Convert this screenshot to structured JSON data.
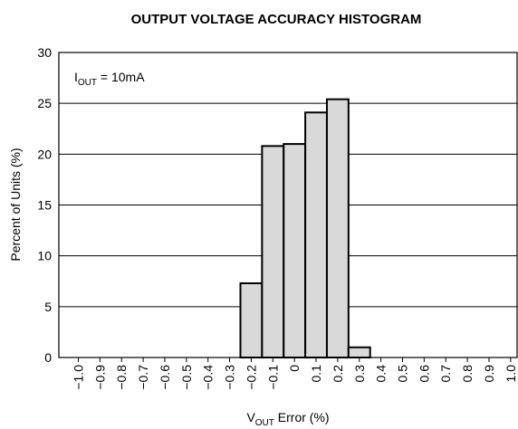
{
  "chart_data": {
    "type": "histogram",
    "title": "OUTPUT VOLTAGE ACCURACY HISTOGRAM",
    "annotation": {
      "main": "I",
      "sub": "OUT",
      "rest": " = 10mA"
    },
    "xlabel": {
      "main": "V",
      "sub": "OUT",
      "rest": " Error (%)"
    },
    "ylabel": "Percent of Units (%)",
    "bins": [
      -0.25,
      -0.15,
      -0.05,
      0.05,
      0.15,
      0.25,
      0.35
    ],
    "counts": [
      7.3,
      20.8,
      21.0,
      24.1,
      25.4,
      1.0
    ],
    "color": "#d9d9d9",
    "xlim": [
      -1.09,
      1.03
    ],
    "xticks": [
      {
        "value": -1.0,
        "label": "−1.0"
      },
      {
        "value": -0.9,
        "label": "−0.9"
      },
      {
        "value": -0.8,
        "label": "−0.8"
      },
      {
        "value": -0.7,
        "label": "−0.7"
      },
      {
        "value": -0.6,
        "label": "−0.6"
      },
      {
        "value": -0.5,
        "label": "−0.5"
      },
      {
        "value": -0.4,
        "label": "−0.4"
      },
      {
        "value": -0.3,
        "label": "−0.3"
      },
      {
        "value": -0.2,
        "label": "−0.2"
      },
      {
        "value": -0.1,
        "label": "−0.1"
      },
      0,
      0.1,
      0.2,
      0.3,
      0.4,
      0.5,
      0.6,
      0.7,
      0.8,
      0.9,
      {
        "value": 1.0,
        "label": "1.0"
      }
    ],
    "ylim": [
      0,
      30
    ],
    "yticks": [
      0,
      5,
      10,
      15,
      20,
      25,
      30
    ],
    "grid": true
  }
}
